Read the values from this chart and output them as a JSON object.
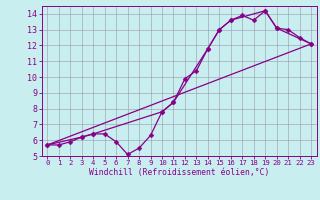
{
  "title": "",
  "xlabel": "Windchill (Refroidissement éolien,°C)",
  "bg_color": "#c8eef0",
  "line_color": "#880088",
  "grid_color": "#9999aa",
  "xlim": [
    -0.5,
    23.5
  ],
  "ylim": [
    5,
    14.5
  ],
  "xticks": [
    0,
    1,
    2,
    3,
    4,
    5,
    6,
    7,
    8,
    9,
    10,
    11,
    12,
    13,
    14,
    15,
    16,
    17,
    18,
    19,
    20,
    21,
    22,
    23
  ],
  "yticks": [
    5,
    6,
    7,
    8,
    9,
    10,
    11,
    12,
    13,
    14
  ],
  "series1_x": [
    0,
    1,
    2,
    3,
    4,
    5,
    6,
    7,
    8,
    9,
    10,
    11,
    12,
    13,
    14,
    15,
    16,
    17,
    18,
    19,
    20,
    21,
    22,
    23
  ],
  "series1_y": [
    5.7,
    5.7,
    5.9,
    6.2,
    6.4,
    6.4,
    5.9,
    5.1,
    5.5,
    6.3,
    7.8,
    8.4,
    9.9,
    10.4,
    11.8,
    13.0,
    13.6,
    13.9,
    13.6,
    14.2,
    13.1,
    13.0,
    12.5,
    12.1
  ],
  "series2_x": [
    0,
    3,
    4,
    10,
    11,
    14,
    15,
    16,
    19,
    20,
    23
  ],
  "series2_y": [
    5.7,
    6.2,
    6.4,
    7.8,
    8.4,
    11.8,
    13.0,
    13.6,
    14.2,
    13.1,
    12.1
  ],
  "series3_x": [
    0,
    23
  ],
  "series3_y": [
    5.7,
    12.1
  ],
  "markersize": 2.5,
  "linewidth": 0.9
}
